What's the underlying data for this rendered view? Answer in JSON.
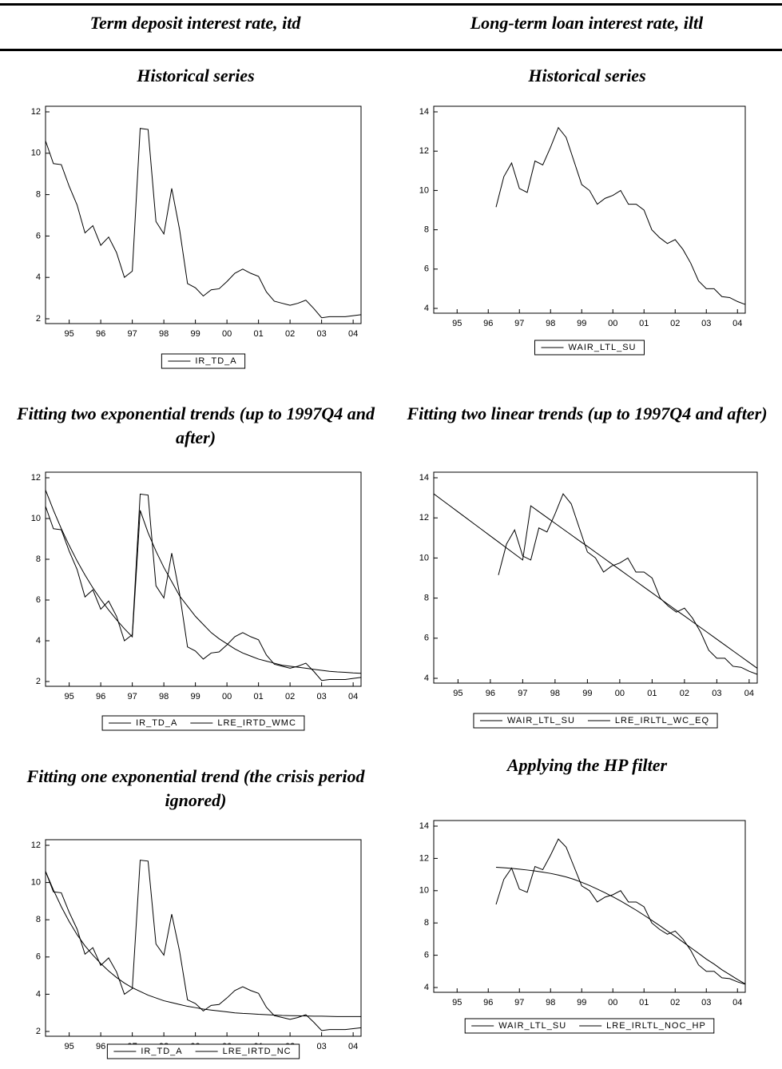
{
  "header": {
    "columns": [
      "Term deposit interest rate, itd",
      "Long-term loan interest rate, iltl"
    ]
  },
  "chart_data": [
    {
      "type": "line",
      "title": "Historical series",
      "x": [
        1994.75,
        1995,
        1995.25,
        1995.5,
        1995.75,
        1996,
        1996.25,
        1996.5,
        1996.75,
        1997,
        1997.25,
        1997.5,
        1997.75,
        1998,
        1998.25,
        1998.5,
        1998.75,
        1999,
        1999.25,
        1999.5,
        1999.75,
        2000,
        2000.25,
        2000.5,
        2000.75,
        2001,
        2001.25,
        2001.5,
        2001.75,
        2002,
        2002.25,
        2002.5,
        2002.75,
        2003,
        2003.25,
        2003.5,
        2003.75,
        2004,
        2004.25,
        2004.5,
        2004.75
      ],
      "series": [
        {
          "name": "IR_TD_A",
          "color": "#000000",
          "values": [
            10.6,
            9.5,
            9.45,
            8.4,
            7.5,
            6.15,
            6.5,
            5.55,
            5.95,
            5.2,
            4.0,
            4.3,
            11.2,
            11.15,
            6.7,
            6.1,
            8.3,
            6.3,
            3.7,
            3.5,
            3.1,
            3.4,
            3.45,
            3.8,
            4.2,
            4.4,
            4.2,
            4.05,
            3.3,
            2.85,
            2.75,
            2.65,
            2.75,
            2.9,
            2.5,
            2.05,
            2.1,
            2.1,
            2.1,
            2.15,
            2.2
          ]
        }
      ],
      "xlim": [
        1994.75,
        2004.75
      ],
      "ylim": [
        2,
        12
      ],
      "xticks": [
        {
          "value": 1995.5,
          "label": "95"
        },
        {
          "value": 1996.5,
          "label": "96"
        },
        {
          "value": 1997.5,
          "label": "97"
        },
        {
          "value": 1998.5,
          "label": "98"
        },
        {
          "value": 1999.5,
          "label": "99"
        },
        {
          "value": 2000.5,
          "label": "00"
        },
        {
          "value": 2001.5,
          "label": "01"
        },
        {
          "value": 2002.5,
          "label": "02"
        },
        {
          "value": 2003.5,
          "label": "03"
        },
        {
          "value": 2004.5,
          "label": "04"
        }
      ],
      "yticks": [
        2,
        4,
        6,
        8,
        10,
        12
      ]
    },
    {
      "type": "line",
      "title": "Historical series",
      "x": [
        1994.75,
        1995,
        1995.25,
        1995.5,
        1995.75,
        1996,
        1996.25,
        1996.5,
        1996.75,
        1997,
        1997.25,
        1997.5,
        1997.75,
        1998,
        1998.25,
        1998.5,
        1998.75,
        1999,
        1999.25,
        1999.5,
        1999.75,
        2000,
        2000.25,
        2000.5,
        2000.75,
        2001,
        2001.25,
        2001.5,
        2001.75,
        2002,
        2002.25,
        2002.5,
        2002.75,
        2003,
        2003.25,
        2003.5,
        2003.75,
        2004,
        2004.25,
        2004.5,
        2004.75
      ],
      "series": [
        {
          "name": "WAIR_LTL_SU",
          "color": "#000000",
          "values": [
            null,
            null,
            null,
            null,
            null,
            null,
            null,
            null,
            9.15,
            10.7,
            11.4,
            10.1,
            9.9,
            11.5,
            11.3,
            12.2,
            13.2,
            12.7,
            11.5,
            10.3,
            10.0,
            9.3,
            9.6,
            9.75,
            10.0,
            9.3,
            9.3,
            9.0,
            8.0,
            7.6,
            7.3,
            7.5,
            7.0,
            6.3,
            5.4,
            5.0,
            5.0,
            4.6,
            4.55,
            4.35,
            4.2
          ]
        }
      ],
      "xlim": [
        1994.75,
        2004.75
      ],
      "ylim": [
        4,
        14
      ],
      "xticks": [
        {
          "value": 1995.5,
          "label": "95"
        },
        {
          "value": 1996.5,
          "label": "96"
        },
        {
          "value": 1997.5,
          "label": "97"
        },
        {
          "value": 1998.5,
          "label": "98"
        },
        {
          "value": 1999.5,
          "label": "99"
        },
        {
          "value": 2000.5,
          "label": "00"
        },
        {
          "value": 2001.5,
          "label": "01"
        },
        {
          "value": 2002.5,
          "label": "02"
        },
        {
          "value": 2003.5,
          "label": "03"
        },
        {
          "value": 2004.5,
          "label": "04"
        }
      ],
      "yticks": [
        4,
        6,
        8,
        10,
        12,
        14
      ]
    },
    {
      "type": "line",
      "title": "Fitting two exponential trends (up to 1997Q4 and after)",
      "x": [
        1994.75,
        1995,
        1995.25,
        1995.5,
        1995.75,
        1996,
        1996.25,
        1996.5,
        1996.75,
        1997,
        1997.25,
        1997.5,
        1997.75,
        1998,
        1998.25,
        1998.5,
        1998.75,
        1999,
        1999.25,
        1999.5,
        1999.75,
        2000,
        2000.25,
        2000.5,
        2000.75,
        2001,
        2001.25,
        2001.5,
        2001.75,
        2002,
        2002.25,
        2002.5,
        2002.75,
        2003,
        2003.25,
        2003.5,
        2003.75,
        2004,
        2004.25,
        2004.5,
        2004.75
      ],
      "series": [
        {
          "name": "IR_TD_A",
          "color": "#000000",
          "values": [
            10.6,
            9.5,
            9.45,
            8.4,
            7.5,
            6.15,
            6.5,
            5.55,
            5.95,
            5.2,
            4.0,
            4.3,
            11.2,
            11.15,
            6.7,
            6.1,
            8.3,
            6.3,
            3.7,
            3.5,
            3.1,
            3.4,
            3.45,
            3.8,
            4.2,
            4.4,
            4.2,
            4.05,
            3.3,
            2.85,
            2.75,
            2.65,
            2.75,
            2.9,
            2.5,
            2.05,
            2.1,
            2.1,
            2.1,
            2.15,
            2.2
          ]
        },
        {
          "name": "LRE_IRTD_WMC",
          "color": "#000000",
          "values": [
            11.4,
            10.41,
            9.5,
            8.68,
            7.92,
            7.23,
            6.6,
            6.03,
            5.51,
            5.03,
            4.59,
            4.19,
            10.4,
            9.3,
            8.4,
            7.6,
            6.9,
            6.2,
            5.7,
            5.2,
            4.8,
            4.4,
            4.1,
            3.85,
            3.6,
            3.4,
            3.25,
            3.1,
            3.0,
            2.9,
            2.8,
            2.75,
            2.7,
            2.65,
            2.6,
            2.55,
            2.5,
            2.47,
            2.45,
            2.42,
            2.4
          ]
        }
      ],
      "xlim": [
        1994.75,
        2004.75
      ],
      "ylim": [
        2,
        12
      ],
      "xticks": [
        {
          "value": 1995.5,
          "label": "95"
        },
        {
          "value": 1996.5,
          "label": "96"
        },
        {
          "value": 1997.5,
          "label": "97"
        },
        {
          "value": 1998.5,
          "label": "98"
        },
        {
          "value": 1999.5,
          "label": "99"
        },
        {
          "value": 2000.5,
          "label": "00"
        },
        {
          "value": 2001.5,
          "label": "01"
        },
        {
          "value": 2002.5,
          "label": "02"
        },
        {
          "value": 2003.5,
          "label": "03"
        },
        {
          "value": 2004.5,
          "label": "04"
        }
      ],
      "yticks": [
        2,
        4,
        6,
        8,
        10,
        12
      ]
    },
    {
      "type": "line",
      "title": "Fitting two linear trends (up to 1997Q4 and after)",
      "x": [
        1994.75,
        1995,
        1995.25,
        1995.5,
        1995.75,
        1996,
        1996.25,
        1996.5,
        1996.75,
        1997,
        1997.25,
        1997.5,
        1997.75,
        1998,
        1998.25,
        1998.5,
        1998.75,
        1999,
        1999.25,
        1999.5,
        1999.75,
        2000,
        2000.25,
        2000.5,
        2000.75,
        2001,
        2001.25,
        2001.5,
        2001.75,
        2002,
        2002.25,
        2002.5,
        2002.75,
        2003,
        2003.25,
        2003.5,
        2003.75,
        2004,
        2004.25,
        2004.5,
        2004.75
      ],
      "series": [
        {
          "name": "WAIR_LTL_SU",
          "color": "#000000",
          "values": [
            null,
            null,
            null,
            null,
            null,
            null,
            null,
            null,
            9.15,
            10.7,
            11.4,
            10.1,
            9.9,
            11.5,
            11.3,
            12.2,
            13.2,
            12.7,
            11.5,
            10.3,
            10.0,
            9.3,
            9.6,
            9.75,
            10.0,
            9.3,
            9.3,
            9.0,
            8.0,
            7.6,
            7.3,
            7.5,
            7.0,
            6.3,
            5.4,
            5.0,
            5.0,
            4.6,
            4.55,
            4.35,
            4.2
          ]
        },
        {
          "name": "LRE_IRLTL_WC_EQ",
          "color": "#000000",
          "values": [
            13.2,
            12.9,
            12.6,
            12.3,
            12.0,
            11.7,
            11.4,
            11.1,
            10.8,
            10.5,
            10.2,
            9.9,
            12.6,
            12.31,
            12.02,
            11.73,
            11.44,
            11.15,
            10.86,
            10.58,
            10.29,
            10.0,
            9.71,
            9.42,
            9.13,
            8.84,
            8.55,
            8.26,
            7.97,
            7.68,
            7.39,
            7.11,
            6.82,
            6.53,
            6.24,
            5.95,
            5.66,
            5.37,
            5.08,
            4.79,
            4.5
          ]
        }
      ],
      "xlim": [
        1994.75,
        2004.75
      ],
      "ylim": [
        4,
        14
      ],
      "xticks": [
        {
          "value": 1995.5,
          "label": "95"
        },
        {
          "value": 1996.5,
          "label": "96"
        },
        {
          "value": 1997.5,
          "label": "97"
        },
        {
          "value": 1998.5,
          "label": "98"
        },
        {
          "value": 1999.5,
          "label": "99"
        },
        {
          "value": 2000.5,
          "label": "00"
        },
        {
          "value": 2001.5,
          "label": "01"
        },
        {
          "value": 2002.5,
          "label": "02"
        },
        {
          "value": 2003.5,
          "label": "03"
        },
        {
          "value": 2004.5,
          "label": "04"
        }
      ],
      "yticks": [
        4,
        6,
        8,
        10,
        12,
        14
      ]
    },
    {
      "type": "line",
      "title": "Fitting one exponential trend (the crisis period ignored)",
      "x": [
        1994.75,
        1995,
        1995.25,
        1995.5,
        1995.75,
        1996,
        1996.25,
        1996.5,
        1996.75,
        1997,
        1997.25,
        1997.5,
        1997.75,
        1998,
        1998.25,
        1998.5,
        1998.75,
        1999,
        1999.25,
        1999.5,
        1999.75,
        2000,
        2000.25,
        2000.5,
        2000.75,
        2001,
        2001.25,
        2001.5,
        2001.75,
        2002,
        2002.25,
        2002.5,
        2002.75,
        2003,
        2003.25,
        2003.5,
        2003.75,
        2004,
        2004.25,
        2004.5,
        2004.75
      ],
      "series": [
        {
          "name": "IR_TD_A",
          "color": "#000000",
          "values": [
            10.6,
            9.5,
            9.45,
            8.4,
            7.5,
            6.15,
            6.5,
            5.55,
            5.95,
            5.2,
            4.0,
            4.3,
            11.2,
            11.15,
            6.7,
            6.1,
            8.3,
            6.3,
            3.7,
            3.5,
            3.1,
            3.4,
            3.45,
            3.8,
            4.2,
            4.4,
            4.2,
            4.05,
            3.3,
            2.85,
            2.75,
            2.65,
            2.75,
            2.9,
            2.5,
            2.05,
            2.1,
            2.1,
            2.1,
            2.15,
            2.2
          ]
        },
        {
          "name": "LRE_IRTD_NC",
          "color": "#000000",
          "values": [
            10.6,
            9.6,
            8.7,
            7.9,
            7.2,
            6.6,
            6.1,
            5.65,
            5.25,
            4.9,
            4.6,
            4.35,
            4.15,
            3.95,
            3.8,
            3.65,
            3.55,
            3.45,
            3.35,
            3.28,
            3.2,
            3.15,
            3.1,
            3.05,
            3.0,
            2.97,
            2.95,
            2.92,
            2.9,
            2.88,
            2.86,
            2.85,
            2.84,
            2.83,
            2.82,
            2.82,
            2.81,
            2.8,
            2.8,
            2.8,
            2.8
          ]
        }
      ],
      "xlim": [
        1994.75,
        2004.75
      ],
      "ylim": [
        2,
        12
      ],
      "xticks": [
        {
          "value": 1995.5,
          "label": "95"
        },
        {
          "value": 1996.5,
          "label": "96"
        },
        {
          "value": 1997.5,
          "label": "97"
        },
        {
          "value": 1998.5,
          "label": "98"
        },
        {
          "value": 1999.5,
          "label": "99"
        },
        {
          "value": 2000.5,
          "label": "00"
        },
        {
          "value": 2001.5,
          "label": "01"
        },
        {
          "value": 2002.5,
          "label": "02"
        },
        {
          "value": 2003.5,
          "label": "03"
        },
        {
          "value": 2004.5,
          "label": "04"
        }
      ],
      "yticks": [
        2,
        4,
        6,
        8,
        10,
        12
      ]
    },
    {
      "type": "line",
      "title": "Applying the HP filter",
      "x": [
        1994.75,
        1995,
        1995.25,
        1995.5,
        1995.75,
        1996,
        1996.25,
        1996.5,
        1996.75,
        1997,
        1997.25,
        1997.5,
        1997.75,
        1998,
        1998.25,
        1998.5,
        1998.75,
        1999,
        1999.25,
        1999.5,
        1999.75,
        2000,
        2000.25,
        2000.5,
        2000.75,
        2001,
        2001.25,
        2001.5,
        2001.75,
        2002,
        2002.25,
        2002.5,
        2002.75,
        2003,
        2003.25,
        2003.5,
        2003.75,
        2004,
        2004.25,
        2004.5,
        2004.75
      ],
      "series": [
        {
          "name": "WAIR_LTL_SU",
          "color": "#000000",
          "values": [
            null,
            null,
            null,
            null,
            null,
            null,
            null,
            null,
            9.15,
            10.7,
            11.4,
            10.1,
            9.9,
            11.5,
            11.3,
            12.2,
            13.2,
            12.7,
            11.5,
            10.3,
            10.0,
            9.3,
            9.6,
            9.75,
            10.0,
            9.3,
            9.3,
            9.0,
            8.0,
            7.6,
            7.3,
            7.5,
            7.0,
            6.3,
            5.4,
            5.0,
            5.0,
            4.6,
            4.55,
            4.35,
            4.2
          ]
        },
        {
          "name": "LRE_IRLTL_NOC_HP",
          "color": "#000000",
          "values": [
            null,
            null,
            null,
            null,
            null,
            null,
            null,
            null,
            11.45,
            11.42,
            11.38,
            11.33,
            11.28,
            11.22,
            11.15,
            11.07,
            10.97,
            10.85,
            10.7,
            10.52,
            10.32,
            10.1,
            9.87,
            9.62,
            9.36,
            9.08,
            8.79,
            8.48,
            8.16,
            7.84,
            7.5,
            7.17,
            6.82,
            6.47,
            6.12,
            5.76,
            5.45,
            5.1,
            4.8,
            4.5,
            4.22
          ]
        }
      ],
      "xlim": [
        1994.75,
        2004.75
      ],
      "ylim": [
        4,
        14
      ],
      "xticks": [
        {
          "value": 1995.5,
          "label": "95"
        },
        {
          "value": 1996.5,
          "label": "96"
        },
        {
          "value": 1997.5,
          "label": "97"
        },
        {
          "value": 1998.5,
          "label": "98"
        },
        {
          "value": 1999.5,
          "label": "99"
        },
        {
          "value": 2000.5,
          "label": "00"
        },
        {
          "value": 2001.5,
          "label": "01"
        },
        {
          "value": 2002.5,
          "label": "02"
        },
        {
          "value": 2003.5,
          "label": "03"
        },
        {
          "value": 2004.5,
          "label": "04"
        }
      ],
      "yticks": [
        4,
        6,
        8,
        10,
        12,
        14
      ]
    }
  ]
}
